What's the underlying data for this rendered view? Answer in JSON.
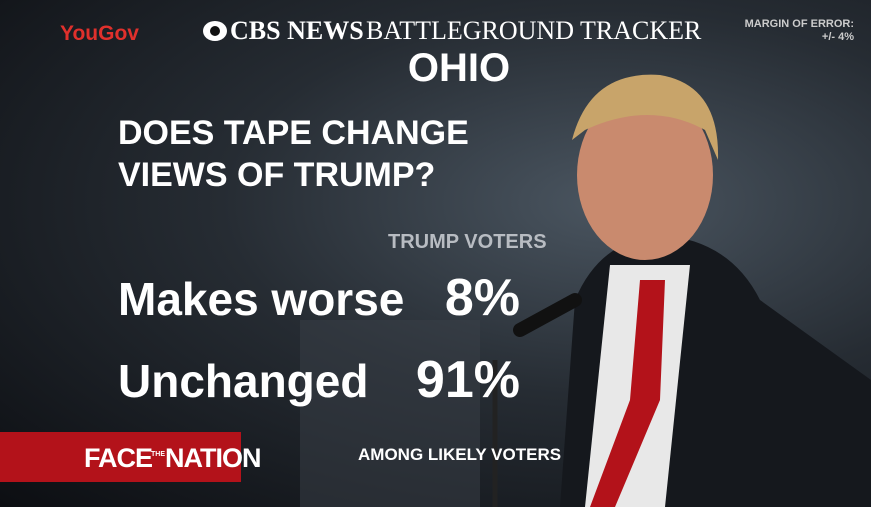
{
  "header": {
    "logo": "YouGov",
    "network": "CBS NEWS",
    "title": "BATTLEGROUND TRACKER",
    "margin_label": "MARGIN OF ERROR:",
    "margin_value": "+/- 4%"
  },
  "state": "OHIO",
  "question": [
    "DOES TAPE CHANGE",
    "VIEWS OF TRUMP?"
  ],
  "table": {
    "column": "TRUMP VOTERS",
    "rows": [
      [
        "Makes worse",
        "8%"
      ],
      [
        "Unchanged",
        "91%"
      ]
    ]
  },
  "show": [
    "FACE",
    "THE",
    "NATION"
  ],
  "footnote": "AMONG LIKELY VOTERS"
}
